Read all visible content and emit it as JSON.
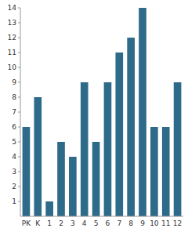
{
  "chart_data": {
    "type": "bar",
    "categories": [
      "PK",
      "K",
      "1",
      "2",
      "3",
      "4",
      "5",
      "6",
      "7",
      "8",
      "9",
      "10",
      "11",
      "12"
    ],
    "values": [
      6,
      8,
      1,
      5,
      4,
      9,
      5,
      9,
      11,
      12,
      14,
      6,
      6,
      9
    ],
    "color": "#2e6a8a",
    "ylim": [
      0,
      14
    ],
    "yticks": [
      1,
      2,
      3,
      4,
      5,
      6,
      7,
      8,
      9,
      10,
      11,
      12,
      13,
      14
    ],
    "grid": false
  }
}
